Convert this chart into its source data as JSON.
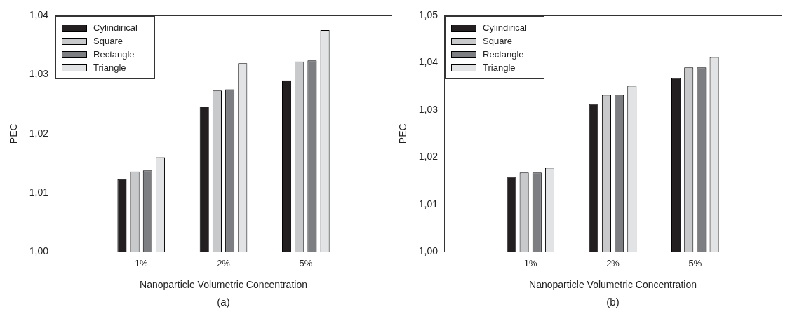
{
  "chart_data": [
    {
      "type": "bar",
      "ylabel": "PEC",
      "xlabel": "Nanoparticle Volumetric Concentration",
      "annotations": [
        "(a)"
      ],
      "categories": [
        "1%",
        "2%",
        "5%"
      ],
      "ylim": [
        1.0,
        1.04
      ],
      "yticks": [
        {
          "value": 1.0,
          "label": "1,00"
        },
        {
          "value": 1.01,
          "label": "1,01"
        },
        {
          "value": 1.02,
          "label": "1,02"
        },
        {
          "value": 1.03,
          "label": "1,03"
        },
        {
          "value": 1.04,
          "label": "1,04"
        }
      ],
      "grid": false,
      "legend": "top left",
      "series": [
        {
          "name": "Cylindirical",
          "color": "#231f20",
          "values": [
            1.0123,
            1.0246,
            1.029
          ]
        },
        {
          "name": "Square",
          "color": "#c8c9cb",
          "values": [
            1.0136,
            1.0273,
            1.0322
          ]
        },
        {
          "name": "Rectangle",
          "color": "#7d7e82",
          "values": [
            1.0138,
            1.0275,
            1.0324
          ]
        },
        {
          "name": "Triangle",
          "color": "#e2e3e4",
          "values": [
            1.016,
            1.0319,
            1.0375
          ]
        }
      ]
    },
    {
      "type": "bar",
      "ylabel": "PEC",
      "xlabel": "Nanoparticle Volumetric Concentration",
      "annotations": [
        "(b)"
      ],
      "categories": [
        "1%",
        "2%",
        "5%"
      ],
      "ylim": [
        1.0,
        1.05
      ],
      "yticks": [
        {
          "value": 1.0,
          "label": "1,00"
        },
        {
          "value": 1.01,
          "label": "1,01"
        },
        {
          "value": 1.02,
          "label": "1,02"
        },
        {
          "value": 1.03,
          "label": "1,03"
        },
        {
          "value": 1.04,
          "label": "1,04"
        },
        {
          "value": 1.05,
          "label": "1,05"
        }
      ],
      "grid": false,
      "legend": "top left",
      "series": [
        {
          "name": "Cylindirical",
          "color": "#231f20",
          "values": [
            1.0159,
            1.0313,
            1.0368
          ]
        },
        {
          "name": "Square",
          "color": "#c8c9cb",
          "values": [
            1.0168,
            1.0332,
            1.039
          ]
        },
        {
          "name": "Rectangle",
          "color": "#7d7e82",
          "values": [
            1.0168,
            1.0332,
            1.039
          ]
        },
        {
          "name": "Triangle",
          "color": "#e2e3e4",
          "values": [
            1.0178,
            1.0351,
            1.0412
          ]
        }
      ]
    }
  ]
}
